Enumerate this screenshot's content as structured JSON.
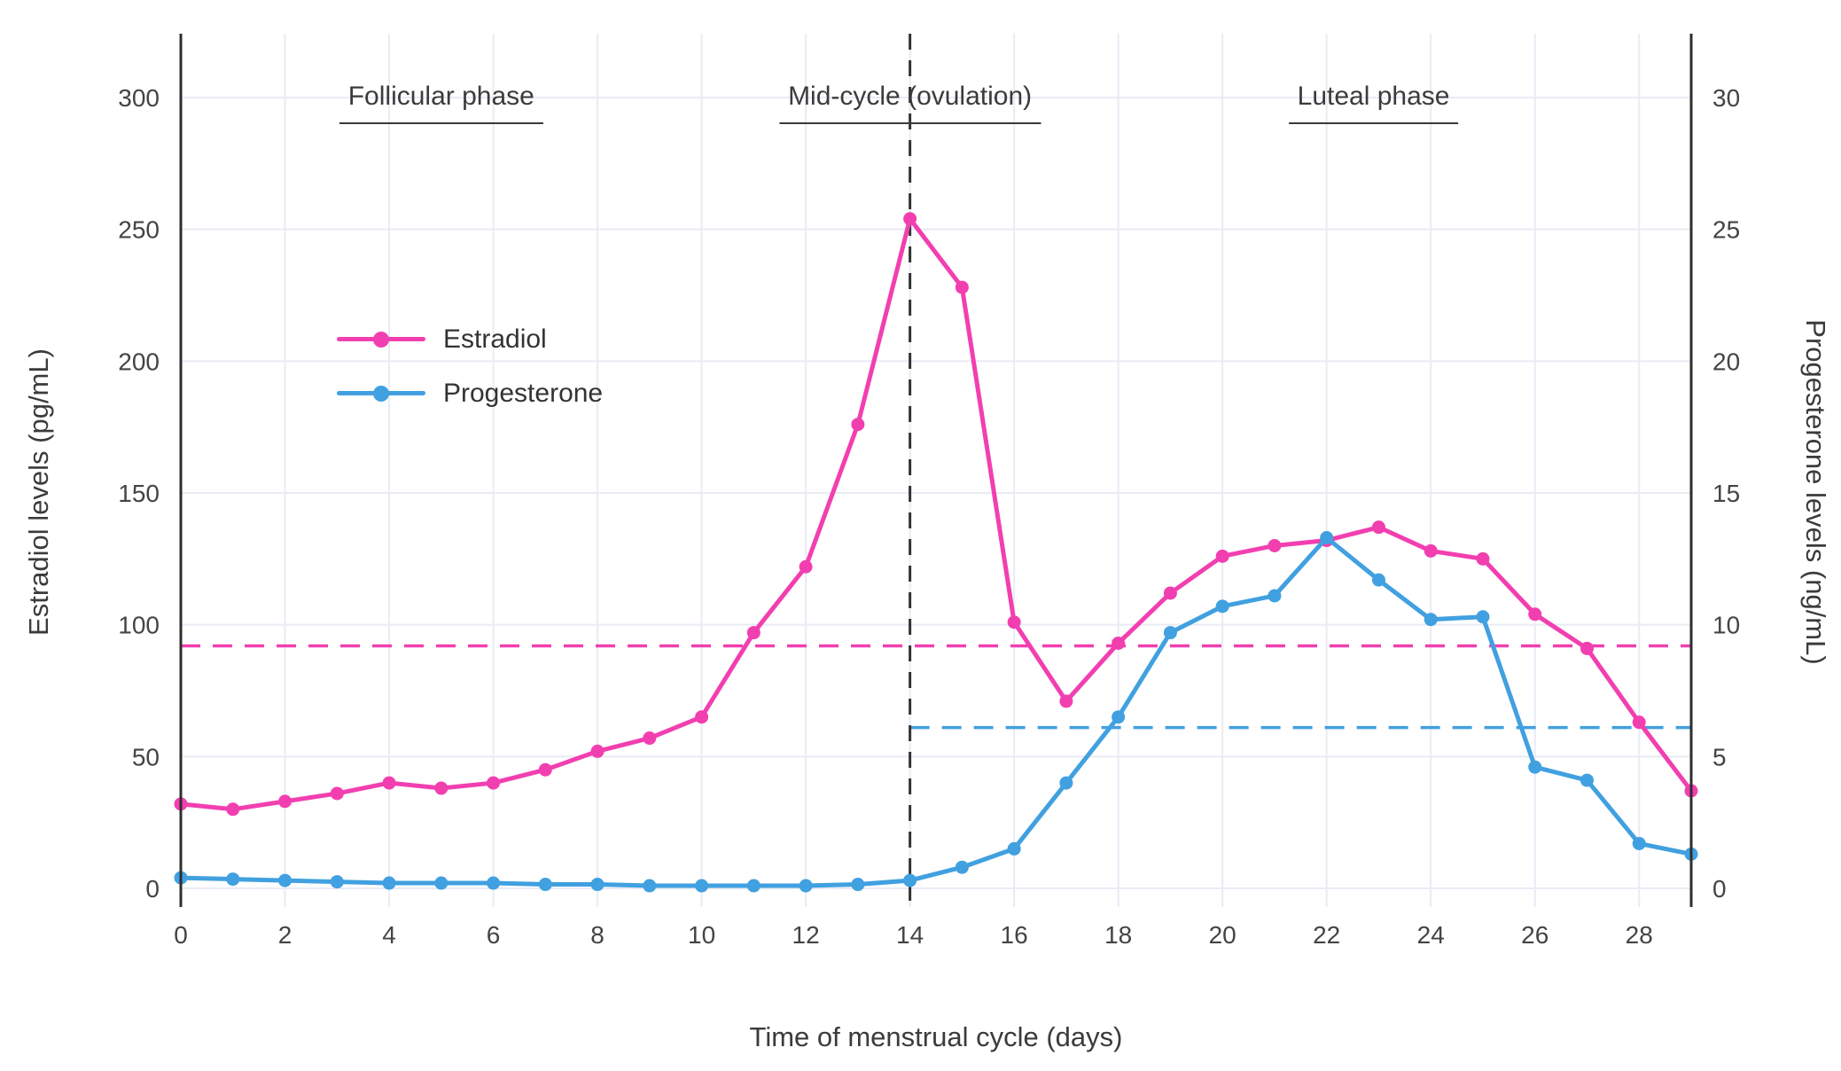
{
  "chart_data": {
    "type": "line",
    "xlabel": "Time of menstrual cycle (days)",
    "ylabel_left": "Estradiol levels (pg/mL)",
    "ylabel_right": "Progesterone levels (ng/mL)",
    "x": [
      0,
      1,
      2,
      3,
      4,
      5,
      6,
      7,
      8,
      9,
      10,
      11,
      12,
      13,
      14,
      15,
      16,
      17,
      18,
      19,
      20,
      21,
      22,
      23,
      24,
      25,
      26,
      27,
      28,
      29
    ],
    "x_ticks": [
      0,
      2,
      4,
      6,
      8,
      10,
      12,
      14,
      16,
      18,
      20,
      22,
      24,
      26,
      28
    ],
    "y_left_ticks": [
      0,
      50,
      100,
      150,
      200,
      250,
      300
    ],
    "y_right_ticks": [
      0,
      5,
      10,
      15,
      20,
      25,
      30
    ],
    "y_left_range": [
      0,
      300
    ],
    "y_right_range": [
      0,
      30
    ],
    "grid": true,
    "legend_position": "inside top-left",
    "series": [
      {
        "name": "Estradiol",
        "axis": "left",
        "unit": "pg/mL",
        "color": "#F23FB0",
        "values": [
          32,
          30,
          33,
          36,
          40,
          38,
          40,
          45,
          52,
          57,
          65,
          97,
          122,
          176,
          254,
          228,
          101,
          71,
          93,
          112,
          126,
          130,
          132,
          137,
          128,
          125,
          104,
          91,
          63,
          37
        ]
      },
      {
        "name": "Progesterone",
        "axis": "right",
        "unit": "ng/mL",
        "color": "#41A0E0",
        "values": [
          0.4,
          0.35,
          0.3,
          0.25,
          0.2,
          0.2,
          0.2,
          0.15,
          0.15,
          0.1,
          0.1,
          0.1,
          0.1,
          0.15,
          0.3,
          0.8,
          1.5,
          4.0,
          6.5,
          9.7,
          10.7,
          11.1,
          13.3,
          11.7,
          10.2,
          10.3,
          4.6,
          4.1,
          1.7,
          1.3
        ]
      }
    ],
    "reference_lines": [
      {
        "name": "estradiol-baseline",
        "orientation": "horizontal",
        "axis": "left",
        "value": 92,
        "x_start": 0,
        "x_end": 29,
        "color": "#F23FB0",
        "style": "dashed"
      },
      {
        "name": "progesterone-baseline",
        "orientation": "horizontal",
        "axis": "right",
        "value": 6.1,
        "x_start": 14,
        "x_end": 29,
        "color": "#41A0E0",
        "style": "dashed"
      },
      {
        "name": "ovulation-day",
        "orientation": "vertical",
        "value": 14,
        "color": "#333333",
        "style": "dashed"
      }
    ],
    "annotations": [
      {
        "label": "Follicular phase",
        "x_center": 5.0
      },
      {
        "label": "Mid-cycle (ovulation)",
        "x_center": 14.0
      },
      {
        "label": "Luteal phase",
        "x_center": 22.9
      }
    ]
  }
}
